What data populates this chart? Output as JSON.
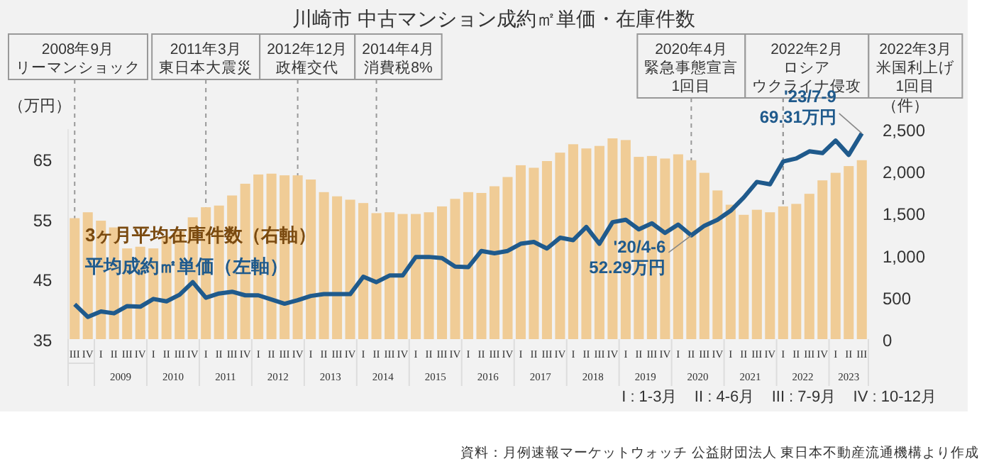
{
  "chart_data": {
    "type": "bar",
    "title": "川崎市 中古マンション成約㎡単価・在庫件数",
    "ylabel": "（万円）",
    "y2label": "（件）",
    "categories": [
      "III",
      "IV",
      "I",
      "II",
      "III",
      "IV",
      "I",
      "II",
      "III",
      "IV",
      "I",
      "II",
      "III",
      "IV",
      "I",
      "II",
      "III",
      "IV",
      "I",
      "II",
      "III",
      "IV",
      "I",
      "II",
      "III",
      "IV",
      "I",
      "II",
      "III",
      "IV",
      "I",
      "II",
      "III",
      "IV",
      "I",
      "II",
      "III",
      "IV",
      "I",
      "II",
      "III",
      "IV",
      "I",
      "II",
      "III",
      "IV",
      "I",
      "II",
      "III",
      "IV",
      "I",
      "II",
      "III",
      "IV",
      "I",
      "II",
      "III",
      "IV",
      "I",
      "II",
      "III"
    ],
    "series": [
      {
        "name": "3ヶ月平均在庫件数（右軸）",
        "axis": "y2",
        "color": "#f0cc96",
        "values": [
          1440,
          1510,
          1410,
          1330,
          1080,
          1100,
          1080,
          1220,
          1280,
          1450,
          1570,
          1590,
          1710,
          1850,
          1960,
          1970,
          1950,
          1950,
          1900,
          1750,
          1700,
          1660,
          1620,
          1500,
          1510,
          1490,
          1490,
          1510,
          1580,
          1670,
          1750,
          1740,
          1820,
          1930,
          2070,
          2040,
          2120,
          2220,
          2320,
          2270,
          2300,
          2390,
          2370,
          2170,
          2180,
          2150,
          2200,
          2130,
          1980,
          1770,
          1600,
          1480,
          1540,
          1510,
          1580,
          1610,
          1730,
          1890,
          1980,
          2060,
          2130
        ]
      },
      {
        "name": "平均成約㎡単価（左軸）",
        "type": "line",
        "color": "#1f5a8c",
        "values": [
          40.8,
          38.7,
          39.6,
          39.3,
          40.5,
          40.4,
          41.7,
          41.3,
          42.4,
          44.5,
          41.9,
          42.6,
          42.9,
          42.3,
          42.3,
          41.6,
          40.9,
          41.5,
          42.2,
          42.5,
          42.5,
          42.5,
          45.4,
          44.5,
          45.6,
          45.6,
          48.7,
          48.7,
          48.5,
          47.1,
          47.0,
          49.7,
          49.3,
          49.7,
          50.9,
          51.2,
          50.1,
          51.9,
          51.5,
          53.7,
          50.9,
          54.5,
          54.9,
          53.3,
          54.3,
          52.7,
          54.1,
          52.29,
          53.9,
          54.9,
          56.4,
          58.6,
          61.2,
          60.8,
          64.6,
          65.1,
          66.3,
          66.0,
          68.1,
          65.7,
          69.31
        ],
        "value_labels": [
          null,
          null,
          null,
          null,
          null,
          null,
          null,
          null,
          null,
          null,
          null,
          null,
          null,
          null,
          null,
          null,
          null,
          null,
          null,
          null,
          null,
          null,
          null,
          null,
          null,
          null,
          null,
          null,
          null,
          null,
          null,
          null,
          null,
          null,
          null,
          null,
          null,
          null,
          null,
          null,
          null,
          null,
          null,
          null,
          null,
          null,
          null,
          "'20/4-6\n52.29万円",
          null,
          null,
          null,
          null,
          null,
          null,
          null,
          null,
          null,
          null,
          null,
          null,
          "'23/7-9\n69.31万円"
        ]
      }
    ],
    "ylim": [
      35,
      70
    ],
    "yticks": [
      35,
      45,
      55,
      65
    ],
    "y2lim": [
      0,
      2500
    ],
    "y2ticks": [
      0,
      500,
      {
        "value": 1000,
        "label": "1,000"
      },
      {
        "value": 1500,
        "label": "1,500"
      },
      {
        "value": 2000,
        "label": "2,000"
      },
      {
        "value": 2500,
        "label": "2,500"
      }
    ],
    "annotations": [
      "2008年9月",
      "リーマンショック",
      "2011年3月",
      "東日本大震災",
      "2012年12月",
      "政権交代",
      "2014年4月",
      "消費税8%",
      "2020年4月",
      "緊急事態宣言",
      "1回目",
      "2022年2月",
      "ロシア",
      "ウクライナ侵攻",
      "2022年3月",
      "米国利上げ",
      "1回目",
      "2009",
      "2010",
      "2011",
      "2012",
      "2013",
      "2014",
      "2015",
      "2016",
      "2017",
      "2018",
      "2019",
      "2020",
      "2021",
      "2022",
      "2023",
      "I : 1-3月    II : 4-6月    III : 7-9月    IV : 10-12月",
      "資料：月例速報マーケットウォッチ 公益財団法人 東日本不動産流通機構より作成"
    ],
    "grid": "x",
    "marker": "none",
    "line_style": "solid"
  }
}
